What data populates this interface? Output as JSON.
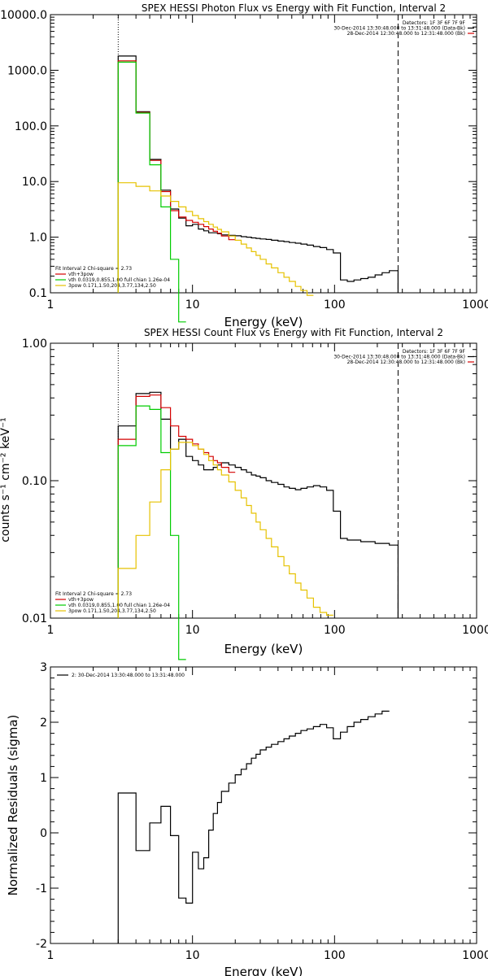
{
  "chart_data": [
    {
      "type": "line",
      "title": "SPEX HESSI Photon Flux vs Energy with Fit Function, Interval 2",
      "xlabel": "Energy (keV)",
      "ylabel": "",
      "xscale": "log",
      "yscale": "log",
      "xlim": [
        1,
        1000
      ],
      "ylim": [
        0.1,
        10000
      ],
      "xtick_labels": [
        "1",
        "10",
        "100",
        "1000"
      ],
      "ytick_labels": [
        "0.1",
        "1.0",
        "10.0",
        "100.0",
        "1000.0",
        "10000.0"
      ],
      "ytick_values": [
        0.1,
        1,
        10,
        100,
        1000,
        10000
      ],
      "vlines": [
        {
          "x": 3,
          "style": "dotted"
        },
        {
          "x": 280,
          "style": "dashed"
        }
      ],
      "legend_top": [
        "Detectors: 1F 3F 6F 7F 9F",
        "30-Dec-2014 13:30:48.000 to 13:31:48.000 (Data-Bk)",
        "28-Dec-2014 12:30:48.000 to 12:31:48.000 (Bk)"
      ],
      "legend_bottom": [
        "Fit Interval 2   Chi-square = 2.73",
        "vth+3pow",
        "vth 0.0319,0.855,1.00  full chian 1.26e-04",
        "3pow 0.171,1.50,204,3.77,134,2.50"
      ],
      "edges": [
        3,
        4,
        5,
        6,
        7,
        8,
        9,
        10,
        11,
        12,
        13,
        14,
        15,
        16,
        18,
        20,
        22,
        24,
        26,
        28,
        30,
        33,
        36,
        40,
        44,
        48,
        53,
        58,
        64,
        71,
        79,
        88,
        98,
        110,
        123,
        137,
        153,
        172,
        193,
        216,
        243,
        280
      ],
      "series": [
        {
          "name": "Data-Bk",
          "color": "#000000",
          "values": [
            1800,
            180,
            25,
            7,
            3.2,
            2.2,
            1.6,
            1.7,
            1.4,
            1.3,
            1.2,
            1.2,
            1.15,
            1.1,
            1.08,
            1.06,
            1.02,
            1.0,
            0.97,
            0.95,
            0.93,
            0.91,
            0.88,
            0.85,
            0.83,
            0.8,
            0.78,
            0.75,
            0.72,
            0.68,
            0.65,
            0.6,
            0.52,
            0.17,
            0.16,
            0.17,
            0.18,
            0.19,
            0.21,
            0.23,
            0.25
          ]
        },
        {
          "name": "vth+3pow",
          "color": "#d40000",
          "values": [
            1480,
            175,
            24,
            6.6,
            3.0,
            2.3,
            2.0,
            1.85,
            1.7,
            1.55,
            1.4,
            1.28,
            1.18,
            1.05,
            0.9
          ]
        },
        {
          "name": "vth",
          "color": "#00cc00",
          "values": [
            1400,
            170,
            20,
            3.5,
            0.4,
            0.03
          ]
        },
        {
          "name": "3pow",
          "color": "#e6c200",
          "values": [
            9.5,
            8.2,
            6.8,
            5.5,
            4.4,
            3.5,
            2.9,
            2.45,
            2.15,
            1.9,
            1.7,
            1.52,
            1.38,
            1.25,
            1.05,
            0.88,
            0.75,
            0.64,
            0.55,
            0.47,
            0.4,
            0.33,
            0.28,
            0.23,
            0.19,
            0.16,
            0.13,
            0.11,
            0.09
          ]
        }
      ]
    },
    {
      "type": "line",
      "title": "SPEX HESSI Count Flux vs Energy with Fit Function, Interval 2",
      "xlabel": "Energy (keV)",
      "ylabel": "counts s⁻¹ cm⁻² keV⁻¹",
      "xscale": "log",
      "yscale": "log",
      "xlim": [
        1,
        1000
      ],
      "ylim": [
        0.01,
        1
      ],
      "xtick_labels": [
        "1",
        "10",
        "100",
        "1000"
      ],
      "ytick_labels": [
        "0.01",
        "0.10",
        "1.00"
      ],
      "ytick_values": [
        0.01,
        0.1,
        1
      ],
      "vlines": [
        {
          "x": 3,
          "style": "dotted"
        },
        {
          "x": 280,
          "style": "dashed"
        }
      ],
      "legend_top": [
        "Detectors: 1F 3F 6F 7F 9F",
        "30-Dec-2014 13:30:48.000 to 13:31:48.000 (Data-Bk)",
        "28-Dec-2014 12:30:48.000 to 12:31:48.000 (Bk)"
      ],
      "legend_bottom": [
        "Fit Interval 2   Chi-square = 2.73",
        "vth+3pow",
        "vth 0.0319,0.855,1.00  full chian 1.26e-04",
        "3pow 0.171,1.50,204,3.77,134,2.50"
      ],
      "edges": [
        3,
        4,
        5,
        6,
        7,
        8,
        9,
        10,
        11,
        12,
        13,
        14,
        15,
        16,
        18,
        20,
        22,
        24,
        26,
        28,
        30,
        33,
        36,
        40,
        44,
        48,
        53,
        58,
        64,
        71,
        79,
        88,
        98,
        110,
        123,
        137,
        153,
        172,
        193,
        216,
        243,
        280
      ],
      "series": [
        {
          "name": "Data-Bk",
          "color": "#000000",
          "values": [
            0.25,
            0.43,
            0.44,
            0.28,
            0.17,
            0.2,
            0.15,
            0.14,
            0.13,
            0.12,
            0.12,
            0.125,
            0.13,
            0.135,
            0.13,
            0.125,
            0.12,
            0.115,
            0.11,
            0.108,
            0.105,
            0.1,
            0.097,
            0.094,
            0.09,
            0.088,
            0.086,
            0.088,
            0.09,
            0.092,
            0.09,
            0.085,
            0.06,
            0.038,
            0.037,
            0.037,
            0.036,
            0.036,
            0.035,
            0.035,
            0.034
          ]
        },
        {
          "name": "vth+3pow",
          "color": "#d40000",
          "values": [
            0.2,
            0.41,
            0.42,
            0.34,
            0.25,
            0.21,
            0.2,
            0.185,
            0.17,
            0.16,
            0.15,
            0.14,
            0.135,
            0.125,
            0.115
          ]
        },
        {
          "name": "vth",
          "color": "#00cc00",
          "values": [
            0.18,
            0.35,
            0.33,
            0.16,
            0.04,
            0.005
          ]
        },
        {
          "name": "3pow",
          "color": "#e6c200",
          "values": [
            0.023,
            0.04,
            0.07,
            0.12,
            0.17,
            0.19,
            0.19,
            0.18,
            0.17,
            0.155,
            0.14,
            0.13,
            0.12,
            0.11,
            0.098,
            0.085,
            0.075,
            0.066,
            0.058,
            0.05,
            0.044,
            0.038,
            0.033,
            0.028,
            0.024,
            0.021,
            0.018,
            0.016,
            0.014,
            0.012,
            0.011,
            0.0105
          ]
        }
      ]
    },
    {
      "type": "line",
      "title": "",
      "xlabel": "Energy (keV)",
      "ylabel": "Normalized Residuals (sigma)",
      "xscale": "log",
      "yscale": "linear",
      "xlim": [
        1,
        1000
      ],
      "ylim": [
        -2,
        3
      ],
      "xtick_labels": [
        "1",
        "10",
        "100",
        "1000"
      ],
      "ytick_labels": [
        "-2",
        "-1",
        "0",
        "1",
        "2",
        "3"
      ],
      "ytick_values": [
        -2,
        -1,
        0,
        1,
        2,
        3
      ],
      "vlines": [],
      "legend_top": [
        "2: 30-Dec-2014 13:30:48.000 to 13:31:48.000"
      ],
      "legend_bottom": [],
      "edges": [
        3,
        4,
        5,
        6,
        7,
        8,
        9,
        10,
        11,
        12,
        13,
        14,
        15,
        16,
        18,
        20,
        22,
        24,
        26,
        28,
        30,
        33,
        36,
        40,
        44,
        48,
        53,
        58,
        64,
        71,
        79,
        88,
        98,
        110,
        123,
        137,
        153,
        172,
        193,
        216,
        243,
        280
      ],
      "series": [
        {
          "name": "2: 30-Dec-2014 13:30:48.000 to 13:31:48.000",
          "color": "#000000",
          "values": [
            0.72,
            -0.32,
            0.18,
            0.48,
            -0.05,
            -1.18,
            -1.27,
            -0.35,
            -0.65,
            -0.45,
            0.05,
            0.35,
            0.55,
            0.75,
            0.9,
            1.05,
            1.15,
            1.25,
            1.35,
            1.42,
            1.5,
            1.55,
            1.6,
            1.65,
            1.7,
            1.75,
            1.8,
            1.85,
            1.88,
            1.92,
            1.96,
            1.9,
            1.7,
            1.82,
            1.92,
            2.0,
            2.05,
            2.1,
            2.15,
            2.2
          ]
        }
      ]
    }
  ]
}
